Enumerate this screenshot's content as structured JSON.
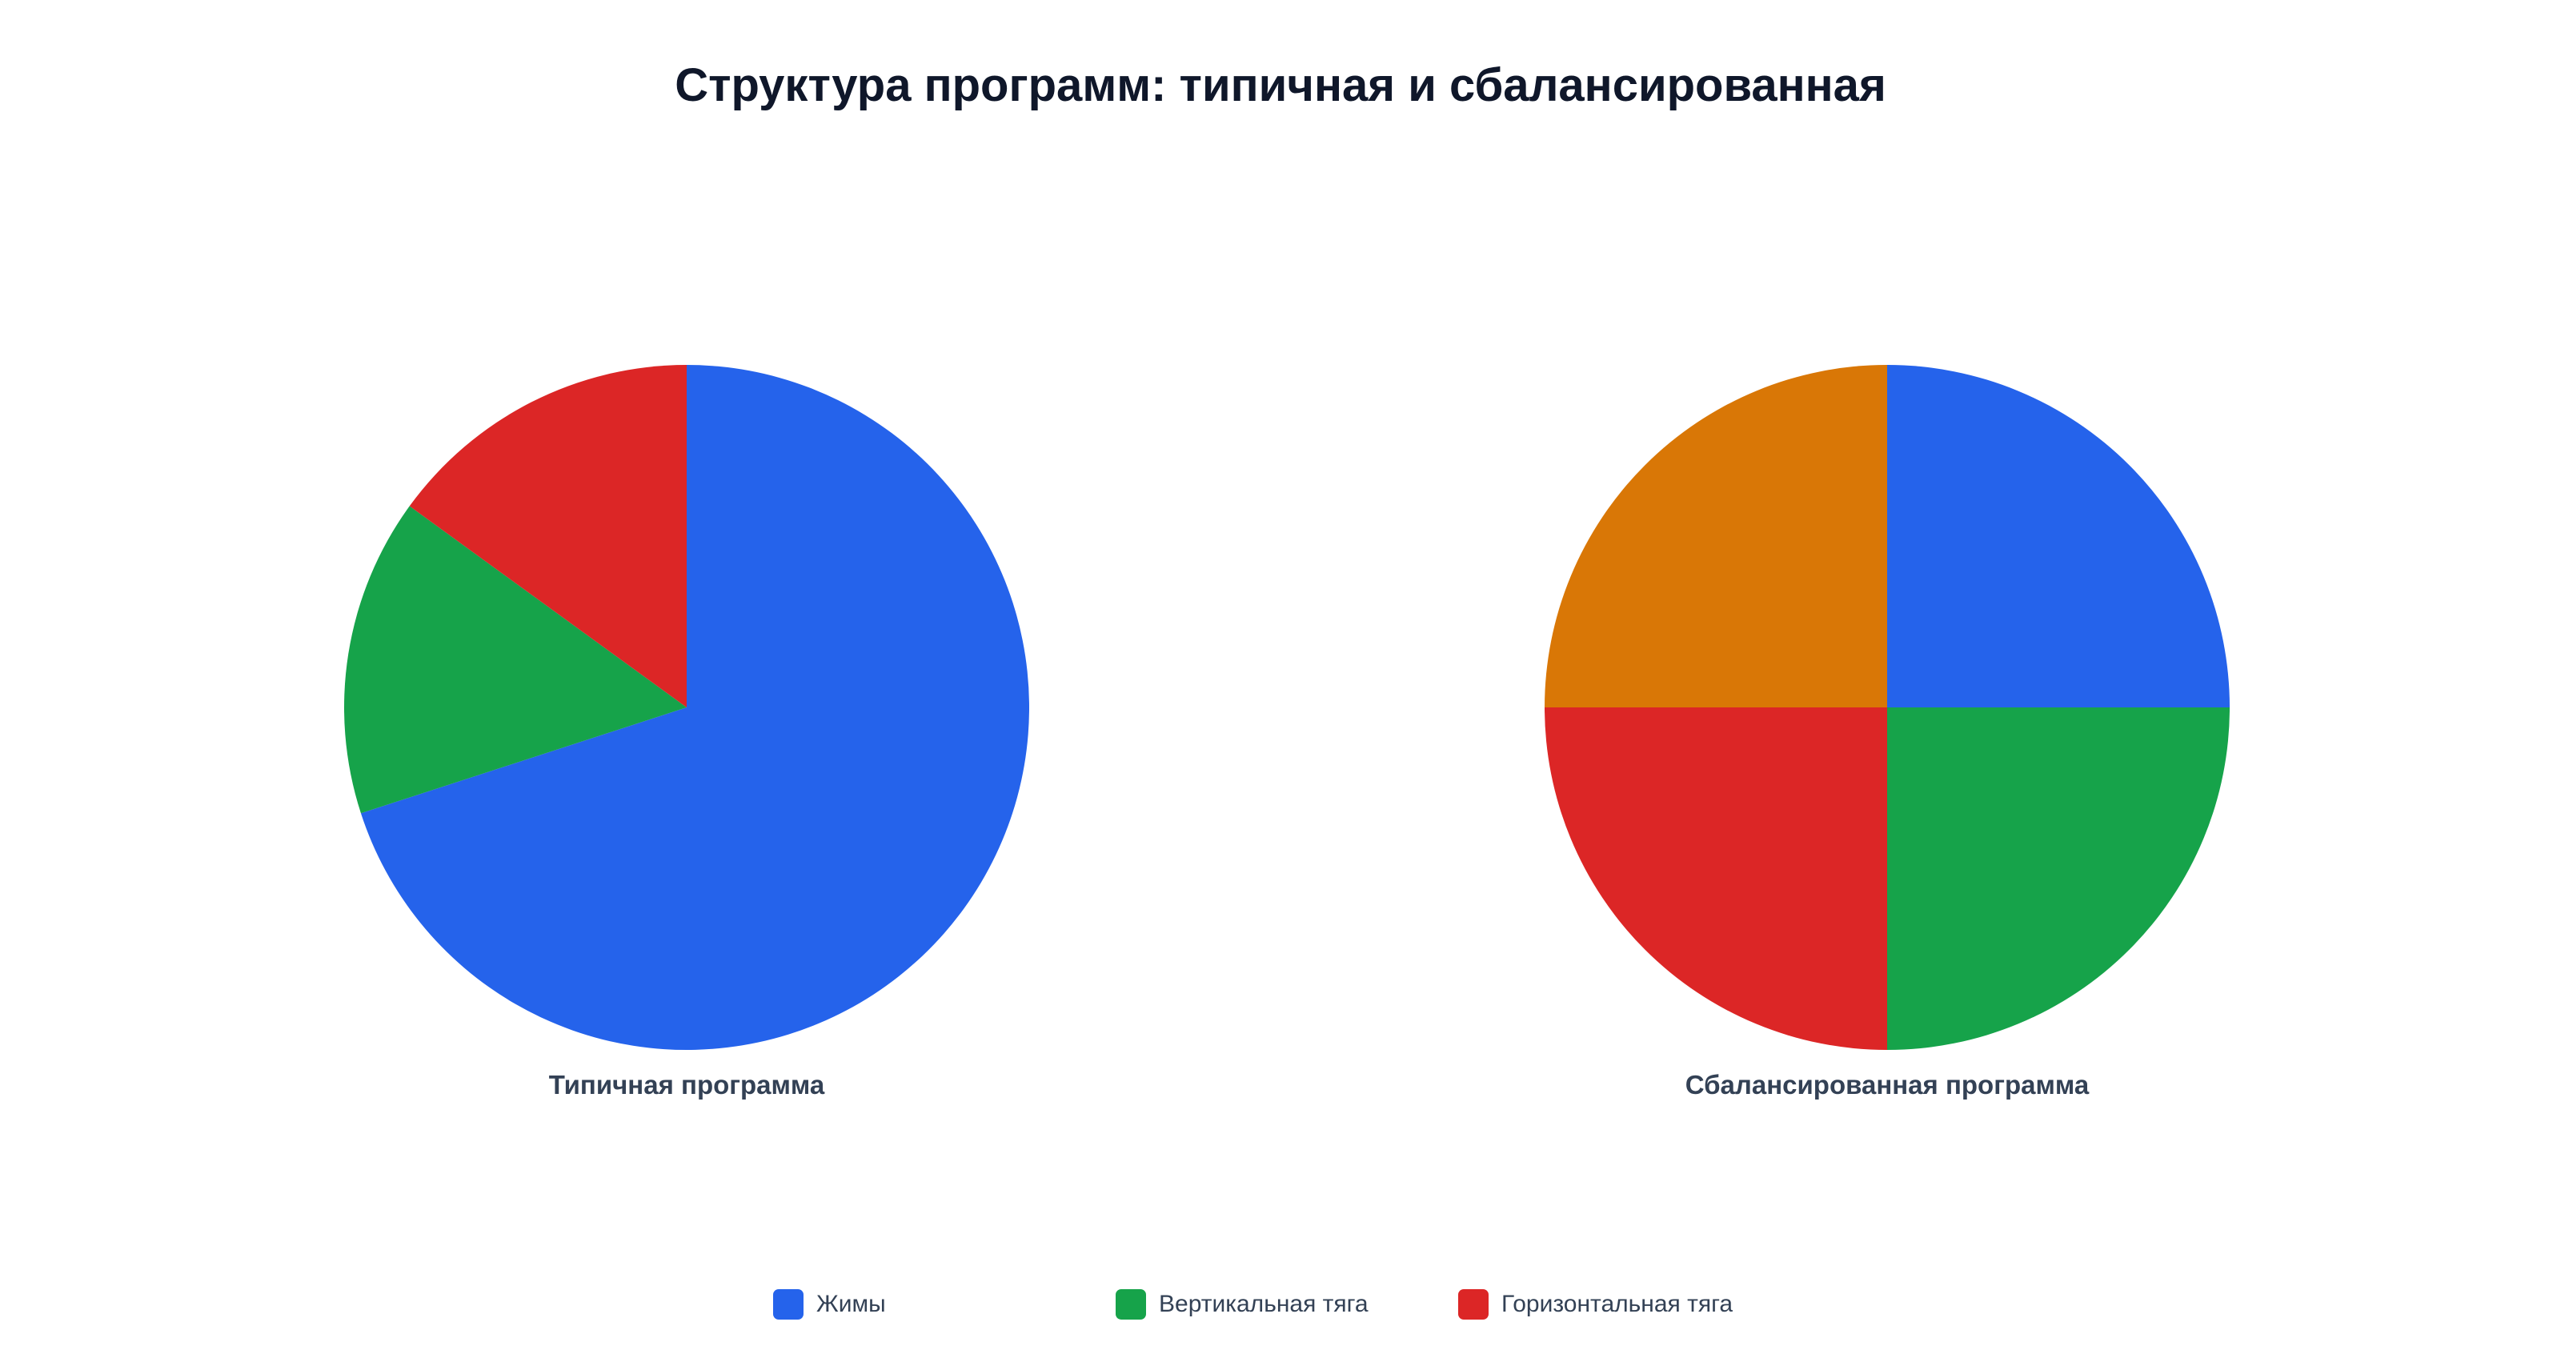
{
  "title": "Структура программ: типичная и сбалансированная",
  "colors": {
    "Жимы": "#2563eb",
    "Вертикальная тяга": "#16a34a",
    "Горизонтальная тяга": "#dc2626",
    "series_4": "#d97706"
  },
  "legend": [
    "Жимы",
    "Вертикальная тяга",
    "Горизонтальная тяга"
  ],
  "chart_data": [
    {
      "type": "pie",
      "label": "Типичная программа",
      "slices": [
        {
          "name": "Жимы",
          "value": 70,
          "color": "#2563eb"
        },
        {
          "name": "Вертикальная тяга",
          "value": 15,
          "color": "#16a34a"
        },
        {
          "name": "Горизонтальная тяга",
          "value": 15,
          "color": "#dc2626"
        }
      ]
    },
    {
      "type": "pie",
      "label": "Сбалансированная программа",
      "slices": [
        {
          "name": "Жимы",
          "value": 25,
          "color": "#2563eb"
        },
        {
          "name": "Вертикальная тяга",
          "value": 25,
          "color": "#16a34a"
        },
        {
          "name": "Горизонтальная тяга",
          "value": 25,
          "color": "#dc2626"
        },
        {
          "name": "",
          "value": 25,
          "color": "#d97706"
        }
      ]
    }
  ]
}
